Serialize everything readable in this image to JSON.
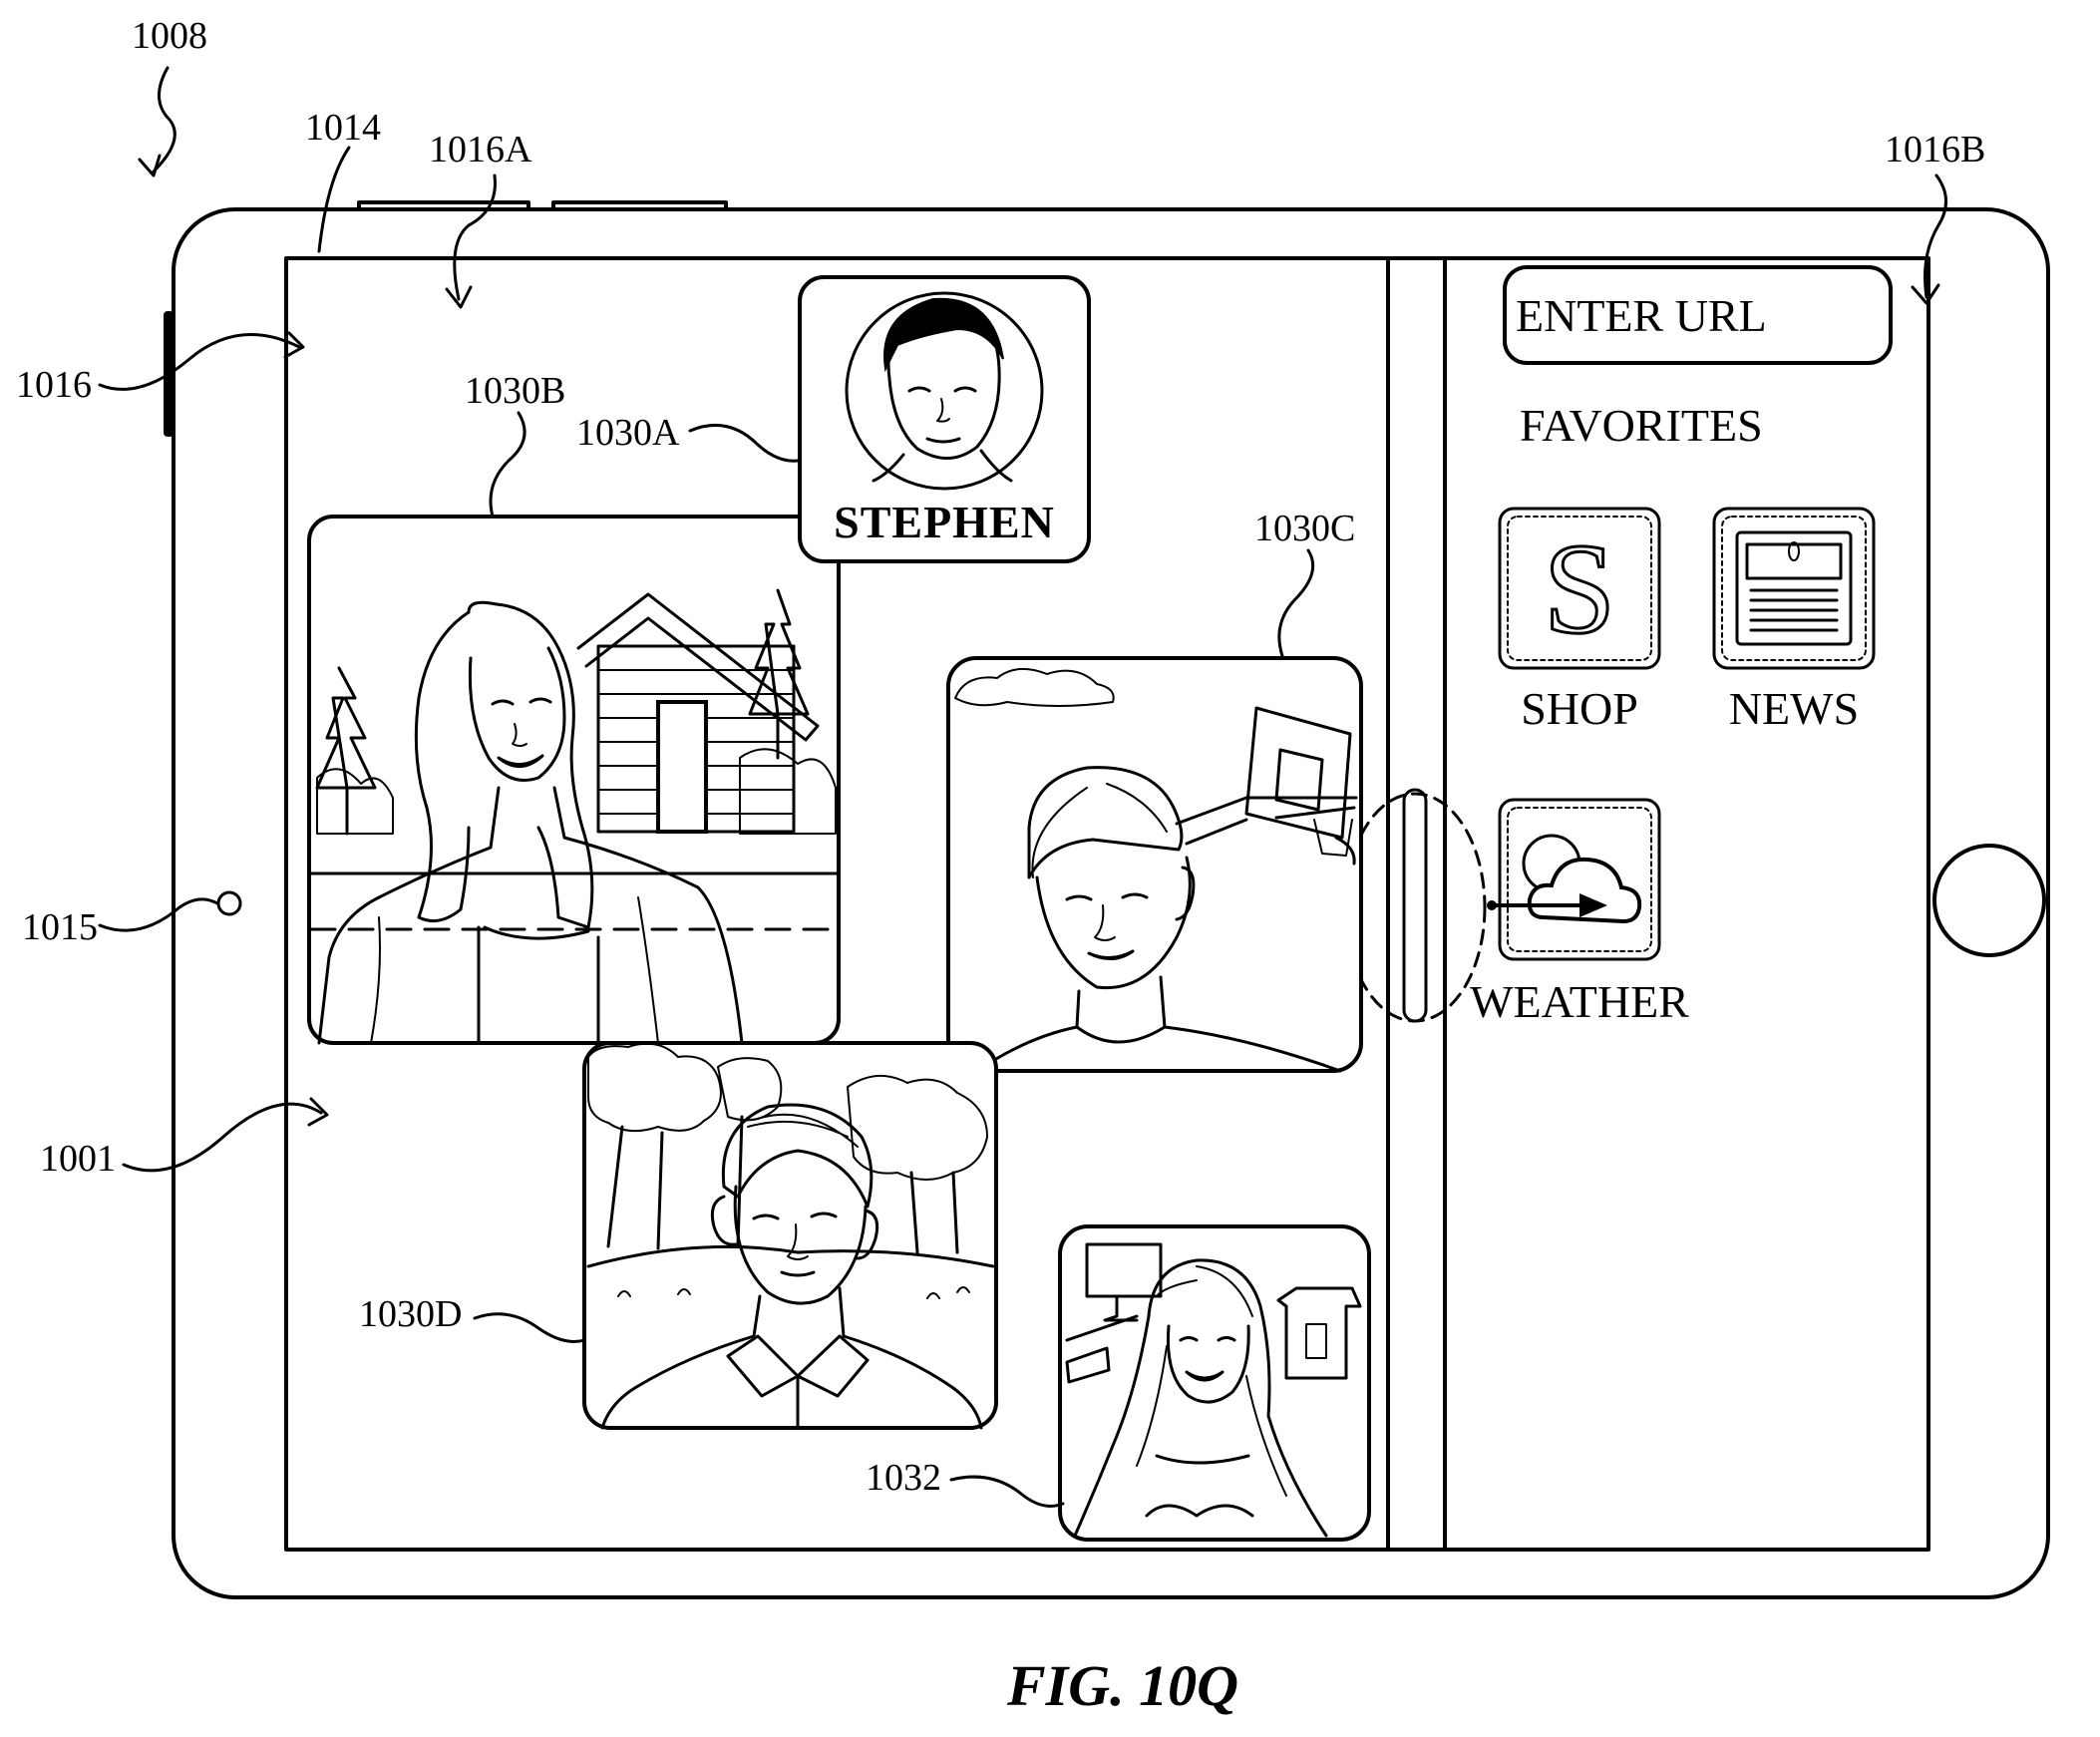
{
  "figure": {
    "caption": "FIG. 10Q"
  },
  "reference_labels": {
    "device": "1008",
    "display": "1014",
    "left_app": "1016A",
    "right_app": "1016B",
    "side_button": "1016",
    "camera": "1015",
    "multitasking_ui": "1001",
    "tile_stephen": "1030A",
    "tile_woman": "1030B",
    "tile_cap_man": "1030C",
    "tile_park_man": "1030D",
    "self_view": "1032"
  },
  "video_call": {
    "participant_name": "STEPHEN"
  },
  "browser": {
    "url_placeholder": "ENTER URL",
    "favorites_heading": "FAVORITES",
    "favorites": [
      {
        "label": "SHOP",
        "icon": "shop-s-icon"
      },
      {
        "label": "NEWS",
        "icon": "newspaper-icon"
      },
      {
        "label": "WEATHER",
        "icon": "cloud-icon"
      }
    ]
  }
}
